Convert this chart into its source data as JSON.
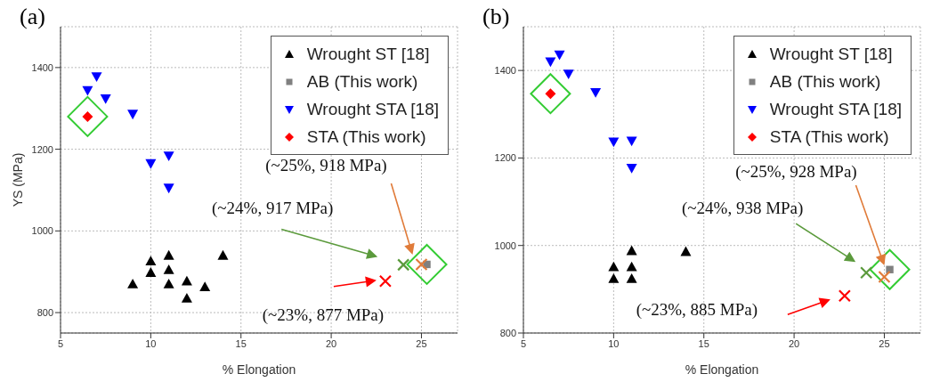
{
  "chart_data": [
    {
      "type": "scatter",
      "title": "(a)",
      "xlabel": "% Elongation",
      "ylabel": "YS (MPa)",
      "xlim": [
        5,
        27
      ],
      "ylim": [
        750,
        1500
      ],
      "xticks": [
        5,
        10,
        15,
        20,
        25
      ],
      "yticks": [
        800,
        1000,
        1200,
        1400
      ],
      "grid": true,
      "legend": "top right",
      "series": [
        {
          "name": "Wrought ST [18]",
          "color": "#000000",
          "marker": "triangle",
          "x": [
            9,
            10,
            10,
            11,
            11,
            11,
            12,
            12,
            13,
            14
          ],
          "values": [
            870,
            926,
            898,
            940,
            905,
            870,
            877,
            835,
            863,
            940
          ]
        },
        {
          "name": "AB (This work)",
          "color": "#808080",
          "marker": "square",
          "x": [
            25.3
          ],
          "values": [
            918
          ]
        },
        {
          "name": "Wrought STA [18]",
          "color": "#0000ff",
          "marker": "triangle-down",
          "x": [
            6.5,
            7,
            7.5,
            9,
            10,
            11,
            11
          ],
          "values": [
            1344,
            1378,
            1324,
            1286,
            1165,
            1184,
            1105
          ]
        },
        {
          "name": "STA (This work)",
          "color": "#ff0000",
          "marker": "diamond",
          "x": [
            6.5
          ],
          "values": [
            1280
          ]
        },
        {
          "color": "#e07b39",
          "marker": "cross",
          "x": [
            25
          ],
          "values": [
            918
          ]
        },
        {
          "color": "#5b9a3c",
          "marker": "cross",
          "x": [
            24
          ],
          "values": [
            917
          ]
        },
        {
          "color": "#ff0000",
          "marker": "cross",
          "x": [
            23
          ],
          "values": [
            877
          ]
        }
      ],
      "annotations": [
        "(~25%, 918 MPa)",
        "(~24%, 917 MPa)",
        "(~23%, 877 MPa)"
      ]
    },
    {
      "type": "scatter",
      "title": "(b)",
      "xlabel": "% Elongation",
      "xlim": [
        5,
        27
      ],
      "ylim": [
        800,
        1500
      ],
      "xticks": [
        5,
        10,
        15,
        20,
        25
      ],
      "yticks": [
        800,
        1000,
        1200,
        1400
      ],
      "grid": true,
      "legend": "top right",
      "series": [
        {
          "name": "Wrought ST [18]",
          "color": "#000000",
          "marker": "triangle",
          "x": [
            10,
            10,
            11,
            11,
            11,
            14
          ],
          "values": [
            951,
            924,
            988,
            951,
            924,
            986
          ]
        },
        {
          "name": "AB (This work)",
          "color": "#808080",
          "marker": "square",
          "x": [
            25.3
          ],
          "values": [
            945
          ]
        },
        {
          "name": "Wrought STA [18]",
          "color": "#0000ff",
          "marker": "triangle-down",
          "x": [
            6.5,
            7,
            7.5,
            9,
            10,
            11,
            11
          ],
          "values": [
            1420,
            1436,
            1392,
            1350,
            1237,
            1239,
            1177
          ]
        },
        {
          "name": "STA (This work)",
          "color": "#ff0000",
          "marker": "diamond",
          "x": [
            6.5
          ],
          "values": [
            1347
          ]
        },
        {
          "color": "#e07b39",
          "marker": "cross",
          "x": [
            25
          ],
          "values": [
            928
          ]
        },
        {
          "color": "#5b9a3c",
          "marker": "cross",
          "x": [
            24
          ],
          "values": [
            938
          ]
        },
        {
          "color": "#ff0000",
          "marker": "cross",
          "x": [
            22.8
          ],
          "values": [
            885
          ]
        }
      ],
      "annotations": [
        "(~25%, 928 MPa)",
        "(~24%, 938 MPa)",
        "(~23%, 885 MPa)"
      ]
    }
  ]
}
